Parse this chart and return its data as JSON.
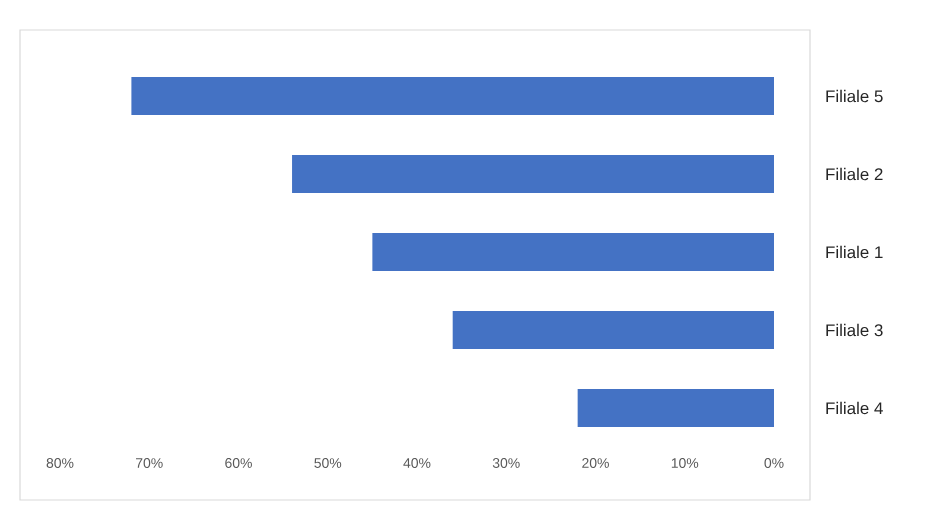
{
  "chart_data": {
    "type": "bar",
    "orientation": "horizontal",
    "categories": [
      "Filiale 5",
      "Filiale 2",
      "Filiale 1",
      "Filiale 3",
      "Filiale 4"
    ],
    "values": [
      72,
      54,
      45,
      36,
      22
    ],
    "color": "#4472c4",
    "xlim": [
      80,
      0
    ],
    "xticks": [
      {
        "value": 80,
        "label": "80%"
      },
      {
        "value": 70,
        "label": "70%"
      },
      {
        "value": 60,
        "label": "60%"
      },
      {
        "value": 50,
        "label": "50%"
      },
      {
        "value": 40,
        "label": "40%"
      },
      {
        "value": 30,
        "label": "30%"
      },
      {
        "value": 20,
        "label": "20%"
      },
      {
        "value": 10,
        "label": "10%"
      },
      {
        "value": 0,
        "label": "0%"
      }
    ]
  }
}
